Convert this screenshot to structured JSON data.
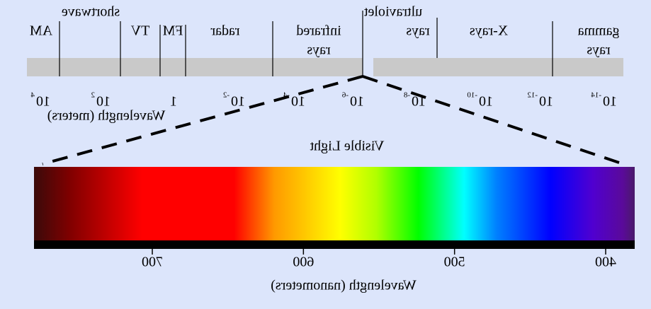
{
  "spectrum": {
    "bands": [
      "gamma",
      "rays",
      "X-rays",
      "ultraviolet",
      "rays",
      "infrared",
      "rays",
      "radar",
      "FM",
      "TV",
      "shortwave",
      "AM"
    ],
    "ticks": [
      {
        "base": "10",
        "exp": "-14"
      },
      {
        "base": "10",
        "exp": "-12"
      },
      {
        "base": "10",
        "exp": "-10"
      },
      {
        "base": "10",
        "exp": "-8"
      },
      {
        "base": "10",
        "exp": "-6"
      },
      {
        "base": "10",
        "exp": "-4"
      },
      {
        "base": "10",
        "exp": "-2"
      },
      {
        "base": "1"
      },
      {
        "base": "10",
        "exp": "2"
      },
      {
        "base": "10",
        "exp": "4"
      }
    ],
    "axis_label": "Wavelength (meters)"
  },
  "visible": {
    "title": "Visible Light",
    "ticks": [
      400,
      500,
      600,
      700
    ],
    "axis_label": "Wavelength (nanometers)"
  }
}
